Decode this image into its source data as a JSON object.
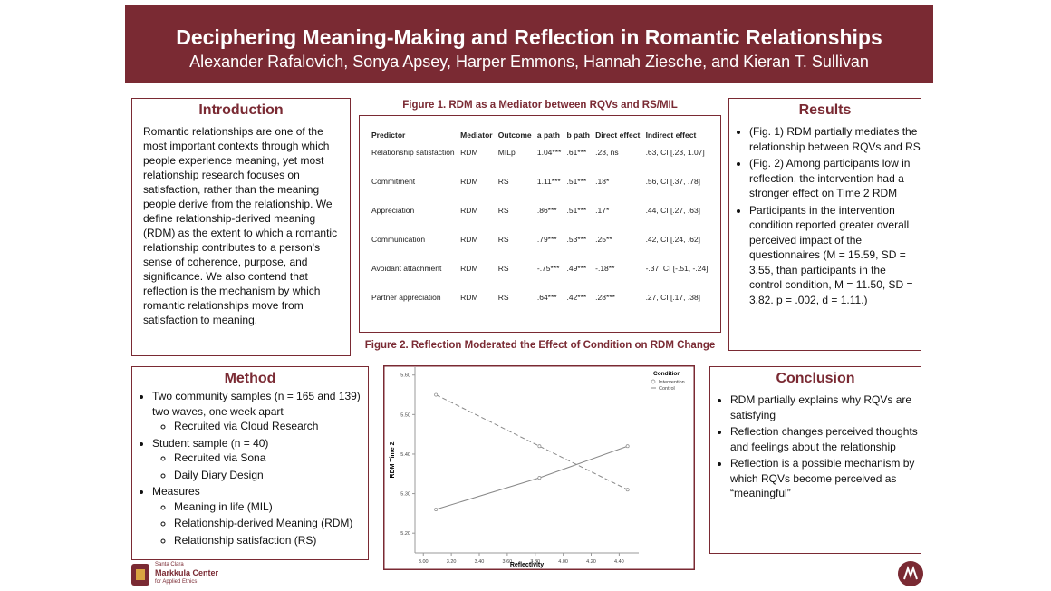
{
  "header": {
    "title": "Deciphering Meaning-Making and Reflection in Romantic Relationships",
    "authors": "Alexander Rafalovich, Sonya Apsey, Harper Emmons, Hannah Ziesche, and Kieran T. Sullivan"
  },
  "introduction": {
    "title": "Introduction",
    "text": "Romantic relationships are one of the most important contexts through which people experience meaning, yet most relationship research focuses on satisfaction, rather than the meaning people derive from the relationship. We define relationship-derived meaning (RDM) as the extent to which a romantic relationship contributes to a person's sense of coherence, purpose, and significance. We also contend that reflection is the mechanism by which romantic relationships move from satisfaction to meaning."
  },
  "figure1": {
    "title": "Figure 1. RDM as a Mediator between RQVs and RS/MIL",
    "table": {
      "header": [
        "Predictor",
        "Mediator",
        "Outcome",
        "a path",
        "b path",
        "Direct effect",
        "Indirect effect"
      ],
      "rows": [
        [
          "Relationship satisfaction",
          "RDM",
          "MILp",
          "1.04***",
          ".61***",
          ".23, ns",
          ".63, CI [.23, 1.07]"
        ],
        [
          "Commitment",
          "RDM",
          "RS",
          "1.11***",
          ".51***",
          ".18*",
          ".56, CI [.37, .78]"
        ],
        [
          "Appreciation",
          "RDM",
          "RS",
          ".86***",
          ".51***",
          ".17*",
          ".44, CI [.27, .63]"
        ],
        [
          "Communication",
          "RDM",
          "RS",
          ".79***",
          ".53***",
          ".25**",
          ".42, CI [.24, .62]"
        ],
        [
          "Avoidant attachment",
          "RDM",
          "RS",
          "-.75***",
          ".49***",
          "-.18**",
          "-.37, CI [-.51, -.24]"
        ],
        [
          "Partner appreciation",
          "RDM",
          "RS",
          ".64***",
          ".42***",
          ".28***",
          ".27, CI [.17, .38]"
        ]
      ]
    }
  },
  "results": {
    "title": "Results",
    "items": [
      "(Fig. 1) RDM partially mediates the relationship between RQVs and RS",
      "(Fig. 2) Among participants low in reflection, the intervention had a stronger effect on Time 2 RDM",
      "Participants in the intervention condition reported greater overall perceived impact of the questionnaires (M = 15.59, SD = 3.55, than participants in the control condition, M = 11.50, SD = 3.82. p = .002, d = 1.11.)"
    ]
  },
  "figure2": {
    "title": "Figure 2. Reflection Moderated the Effect of Condition on RDM Change",
    "chart": {
      "type": "line",
      "x_label": "Reflectivity",
      "y_label": "RDM Time 2",
      "legend_title": "Condition",
      "xlim": [
        2.94,
        4.54
      ],
      "ylim": [
        5.15,
        5.62
      ],
      "xticks": [
        {
          "value": 3,
          "label": "3.00"
        },
        {
          "value": 3.2,
          "label": "3.20"
        },
        {
          "value": 3.4,
          "label": "3.40"
        },
        {
          "value": 3.6,
          "label": "3.60"
        },
        {
          "value": 3.8,
          "label": "3.80"
        },
        {
          "value": 4,
          "label": "4.00"
        },
        {
          "value": 4.2,
          "label": "4.20"
        },
        {
          "value": 4.4,
          "label": "4.40"
        }
      ],
      "yticks": [
        {
          "value": 5.2,
          "label": "5.20"
        },
        {
          "value": 5.3,
          "label": "5.30"
        },
        {
          "value": 5.4,
          "label": "5.40"
        },
        {
          "value": 5.5,
          "label": "5.50"
        },
        {
          "value": 5.6,
          "label": "5.60"
        }
      ],
      "x": [
        3.09,
        3.83,
        4.46
      ],
      "series": [
        {
          "name": "Intervention",
          "color": "#888888",
          "dashed": true,
          "values": [
            5.55,
            5.42,
            5.31
          ]
        },
        {
          "name": "Control",
          "color": "#888888",
          "dashed": false,
          "values": [
            5.26,
            5.34,
            5.42
          ]
        }
      ]
    }
  },
  "method": {
    "title": "Method",
    "items": [
      {
        "text": "Two community samples  (n  = 165 and 139) two waves, one week apart",
        "sub": [
          "Recruited via Cloud Research"
        ]
      },
      {
        "text": "Student sample (n = 40)",
        "sub": [
          "Recruited via Sona",
          "Daily Diary Design"
        ]
      },
      {
        "text": "Measures",
        "sub": [
          "Meaning in life (MIL)",
          "Relationship-derived Meaning (RDM)",
          "Relationship satisfaction (RS)"
        ]
      }
    ]
  },
  "conclusion": {
    "title": "Conclusion",
    "items": [
      "RDM partially explains why RQVs are satisfying",
      "Reflection changes perceived thoughts and feelings about the relationship",
      "Reflection is a possible mechanism by which RQVs become perceived as “meaningful”"
    ]
  },
  "footer": {
    "logo_line1": "Santa Clara",
    "logo_line2": "Markkula Center",
    "logo_line3": "for Applied Ethics"
  }
}
